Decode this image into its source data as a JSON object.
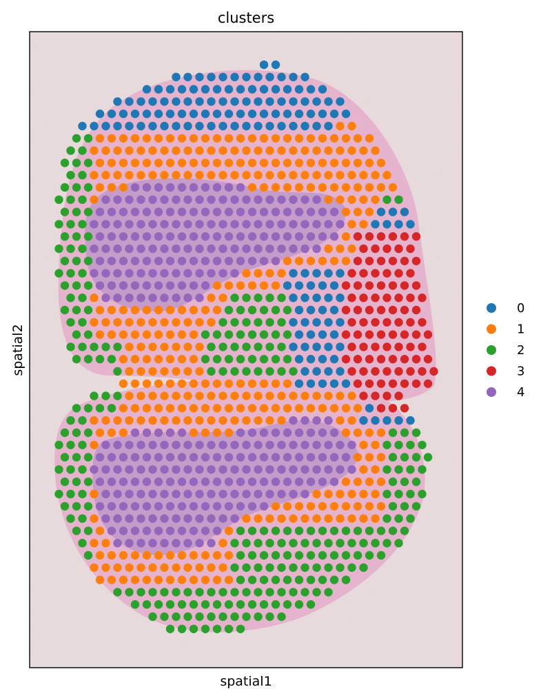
{
  "chart_data": {
    "type": "scatter",
    "title": "clusters",
    "xlabel": "spatial1",
    "ylabel": "spatial2",
    "grid": false,
    "legend_position": "right",
    "background": "H&E tissue section image (two lobes)",
    "series": [
      {
        "name": "0",
        "color": "#1f77b4"
      },
      {
        "name": "1",
        "color": "#ff7f0e"
      },
      {
        "name": "2",
        "color": "#2ca02c"
      },
      {
        "name": "3",
        "color": "#d62728"
      },
      {
        "name": "4",
        "color": "#9467bd"
      }
    ]
  }
}
